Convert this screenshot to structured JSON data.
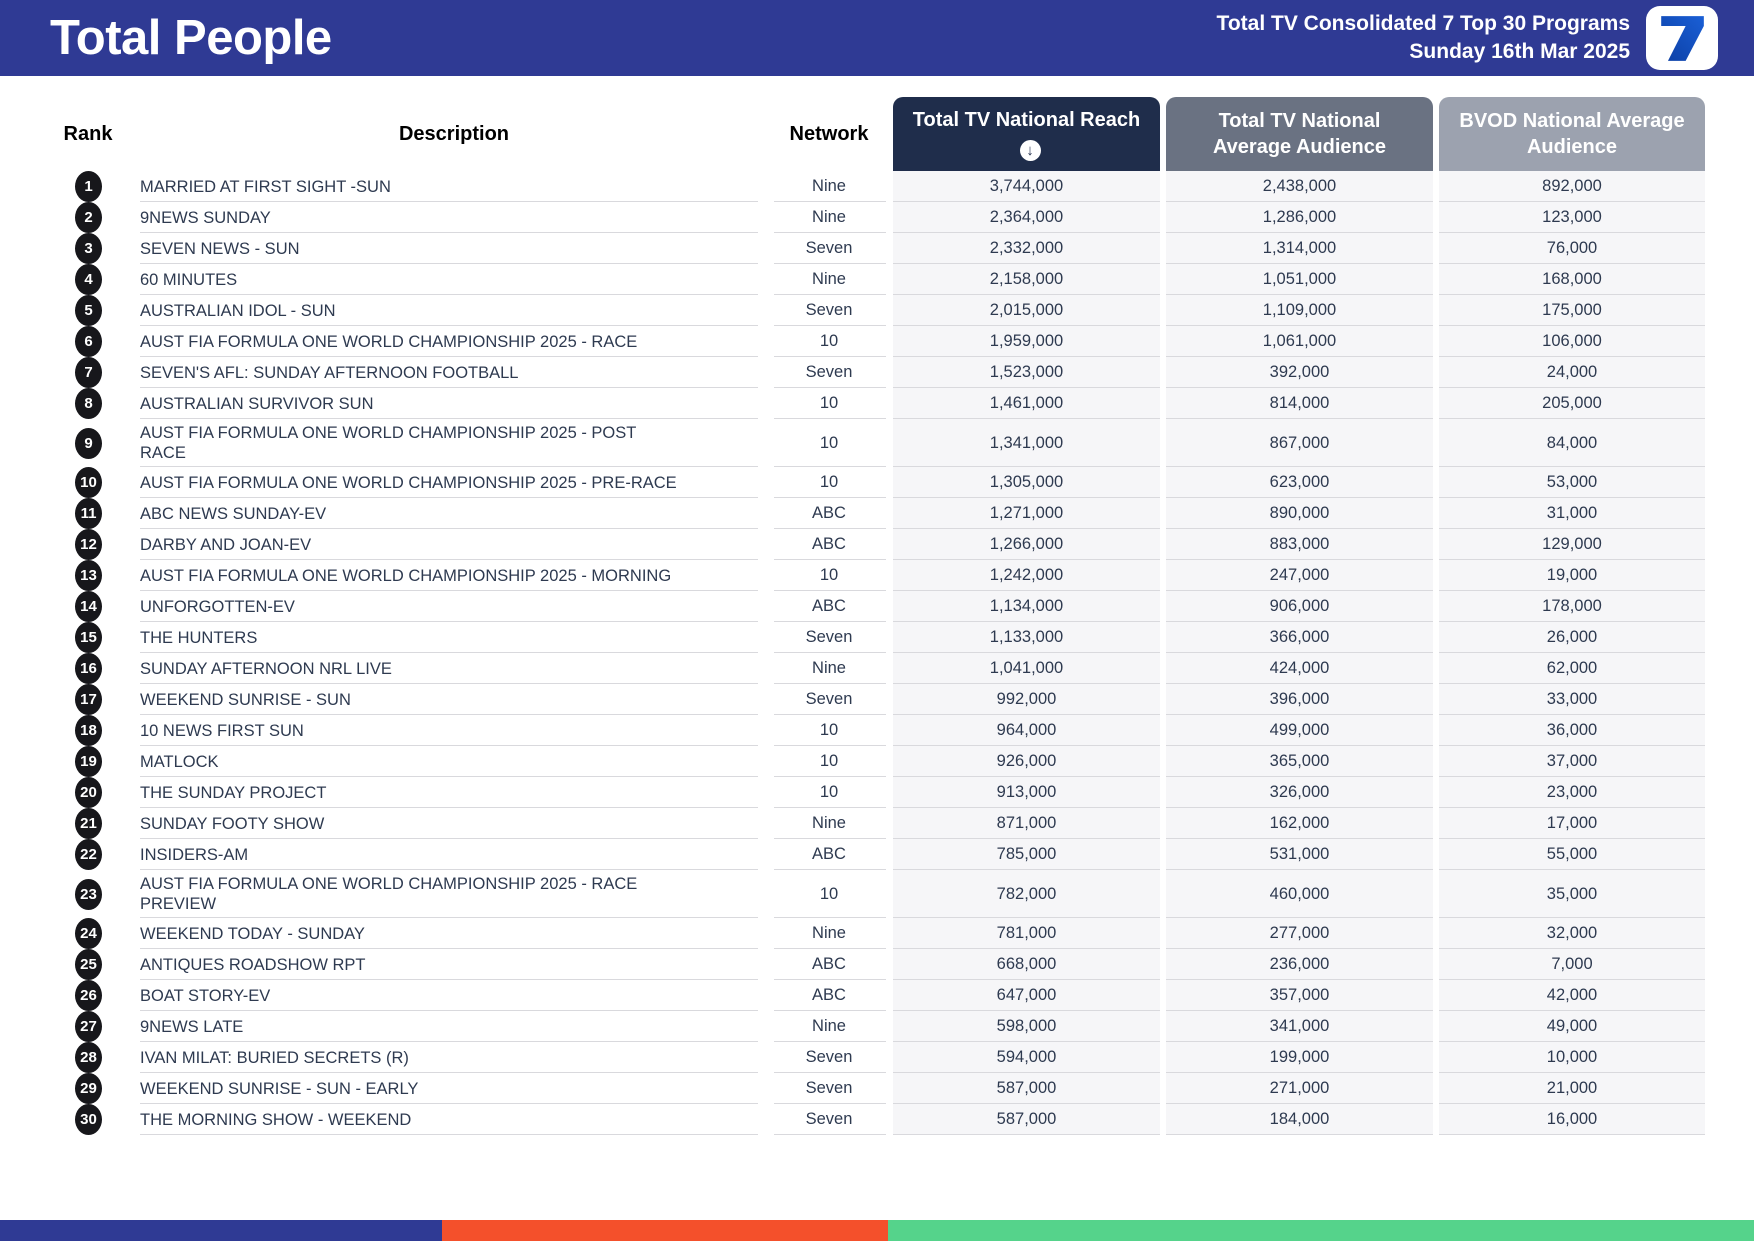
{
  "header": {
    "title": "Total People",
    "subtitle_line1": "Total TV Consolidated 7 Top 30 Programs",
    "subtitle_line2": "Sunday 16th Mar 2025",
    "logo_icon": "seven-network-7-logo"
  },
  "columns": {
    "rank": "Rank",
    "description": "Description",
    "network": "Network",
    "reach": "Total TV National Reach",
    "reach_sort_glyph": "↓",
    "avg": "Total TV National Average Audience",
    "bvod": "BVOD National Average Audience"
  },
  "colors": {
    "topbar_blue": "#2F3A94",
    "reach_header": "#1F2D4B",
    "avg_header": "#6A7282",
    "bvod_header": "#9CA2AF",
    "numeric_cell_bg": "#F6F6F8",
    "row_divider": "#D9D9DD",
    "body_text": "#2E3A50",
    "rank_badge": "#17171B",
    "footer_orange": "#F4502B",
    "footer_green": "#55D38B",
    "seven_logo_blue_top": "#1A5FD6",
    "seven_logo_blue_bottom": "#0C3FA4"
  },
  "rows": [
    {
      "rank": "1",
      "description": "MARRIED AT FIRST SIGHT -SUN",
      "network": "Nine",
      "reach": "3,744,000",
      "avg": "2,438,000",
      "bvod": "892,000"
    },
    {
      "rank": "2",
      "description": "9NEWS SUNDAY",
      "network": "Nine",
      "reach": "2,364,000",
      "avg": "1,286,000",
      "bvod": "123,000"
    },
    {
      "rank": "3",
      "description": "SEVEN NEWS - SUN",
      "network": "Seven",
      "reach": "2,332,000",
      "avg": "1,314,000",
      "bvod": "76,000"
    },
    {
      "rank": "4",
      "description": "60 MINUTES",
      "network": "Nine",
      "reach": "2,158,000",
      "avg": "1,051,000",
      "bvod": "168,000"
    },
    {
      "rank": "5",
      "description": "AUSTRALIAN IDOL - SUN",
      "network": "Seven",
      "reach": "2,015,000",
      "avg": "1,109,000",
      "bvod": "175,000"
    },
    {
      "rank": "6",
      "description": "AUST FIA FORMULA ONE WORLD CHAMPIONSHIP 2025 - RACE",
      "network": "10",
      "reach": "1,959,000",
      "avg": "1,061,000",
      "bvod": "106,000"
    },
    {
      "rank": "7",
      "description": "SEVEN'S AFL: SUNDAY AFTERNOON FOOTBALL",
      "network": "Seven",
      "reach": "1,523,000",
      "avg": "392,000",
      "bvod": "24,000"
    },
    {
      "rank": "8",
      "description": "AUSTRALIAN SURVIVOR SUN",
      "network": "10",
      "reach": "1,461,000",
      "avg": "814,000",
      "bvod": "205,000"
    },
    {
      "rank": "9",
      "description": "AUST FIA FORMULA ONE WORLD CHAMPIONSHIP 2025 - POST RACE",
      "network": "10",
      "reach": "1,341,000",
      "avg": "867,000",
      "bvod": "84,000"
    },
    {
      "rank": "10",
      "description": "AUST FIA FORMULA ONE WORLD CHAMPIONSHIP 2025 - PRE-RACE",
      "network": "10",
      "reach": "1,305,000",
      "avg": "623,000",
      "bvod": "53,000"
    },
    {
      "rank": "11",
      "description": "ABC NEWS SUNDAY-EV",
      "network": "ABC",
      "reach": "1,271,000",
      "avg": "890,000",
      "bvod": "31,000"
    },
    {
      "rank": "12",
      "description": "DARBY AND JOAN-EV",
      "network": "ABC",
      "reach": "1,266,000",
      "avg": "883,000",
      "bvod": "129,000"
    },
    {
      "rank": "13",
      "description": "AUST FIA FORMULA ONE WORLD CHAMPIONSHIP 2025 - MORNING",
      "network": "10",
      "reach": "1,242,000",
      "avg": "247,000",
      "bvod": "19,000"
    },
    {
      "rank": "14",
      "description": "UNFORGOTTEN-EV",
      "network": "ABC",
      "reach": "1,134,000",
      "avg": "906,000",
      "bvod": "178,000"
    },
    {
      "rank": "15",
      "description": "THE HUNTERS",
      "network": "Seven",
      "reach": "1,133,000",
      "avg": "366,000",
      "bvod": "26,000"
    },
    {
      "rank": "16",
      "description": "SUNDAY AFTERNOON NRL LIVE",
      "network": "Nine",
      "reach": "1,041,000",
      "avg": "424,000",
      "bvod": "62,000"
    },
    {
      "rank": "17",
      "description": "WEEKEND SUNRISE - SUN",
      "network": "Seven",
      "reach": "992,000",
      "avg": "396,000",
      "bvod": "33,000"
    },
    {
      "rank": "18",
      "description": "10 NEWS FIRST SUN",
      "network": "10",
      "reach": "964,000",
      "avg": "499,000",
      "bvod": "36,000"
    },
    {
      "rank": "19",
      "description": "MATLOCK",
      "network": "10",
      "reach": "926,000",
      "avg": "365,000",
      "bvod": "37,000"
    },
    {
      "rank": "20",
      "description": "THE SUNDAY PROJECT",
      "network": "10",
      "reach": "913,000",
      "avg": "326,000",
      "bvod": "23,000"
    },
    {
      "rank": "21",
      "description": "SUNDAY FOOTY SHOW",
      "network": "Nine",
      "reach": "871,000",
      "avg": "162,000",
      "bvod": "17,000"
    },
    {
      "rank": "22",
      "description": "INSIDERS-AM",
      "network": "ABC",
      "reach": "785,000",
      "avg": "531,000",
      "bvod": "55,000"
    },
    {
      "rank": "23",
      "description": "AUST FIA FORMULA ONE WORLD CHAMPIONSHIP 2025 - RACE PREVIEW",
      "network": "10",
      "reach": "782,000",
      "avg": "460,000",
      "bvod": "35,000"
    },
    {
      "rank": "24",
      "description": "WEEKEND TODAY - SUNDAY",
      "network": "Nine",
      "reach": "781,000",
      "avg": "277,000",
      "bvod": "32,000"
    },
    {
      "rank": "25",
      "description": "ANTIQUES ROADSHOW RPT",
      "network": "ABC",
      "reach": "668,000",
      "avg": "236,000",
      "bvod": "7,000"
    },
    {
      "rank": "26",
      "description": "BOAT STORY-EV",
      "network": "ABC",
      "reach": "647,000",
      "avg": "357,000",
      "bvod": "42,000"
    },
    {
      "rank": "27",
      "description": "9NEWS LATE",
      "network": "Nine",
      "reach": "598,000",
      "avg": "341,000",
      "bvod": "49,000"
    },
    {
      "rank": "28",
      "description": "IVAN MILAT: BURIED SECRETS (R)",
      "network": "Seven",
      "reach": "594,000",
      "avg": "199,000",
      "bvod": "10,000"
    },
    {
      "rank": "29",
      "description": "WEEKEND SUNRISE - SUN - EARLY",
      "network": "Seven",
      "reach": "587,000",
      "avg": "271,000",
      "bvod": "21,000"
    },
    {
      "rank": "30",
      "description": "THE MORNING SHOW - WEEKEND",
      "network": "Seven",
      "reach": "587,000",
      "avg": "184,000",
      "bvod": "16,000"
    }
  ],
  "footer": {
    "segments": [
      {
        "name": "blue",
        "color": "#2F3A94",
        "width_pct": 25.2
      },
      {
        "name": "orange",
        "color": "#F4502B",
        "width_pct": 25.45
      },
      {
        "name": "green",
        "color": "#55D38B",
        "width_pct": 49.35
      }
    ]
  }
}
